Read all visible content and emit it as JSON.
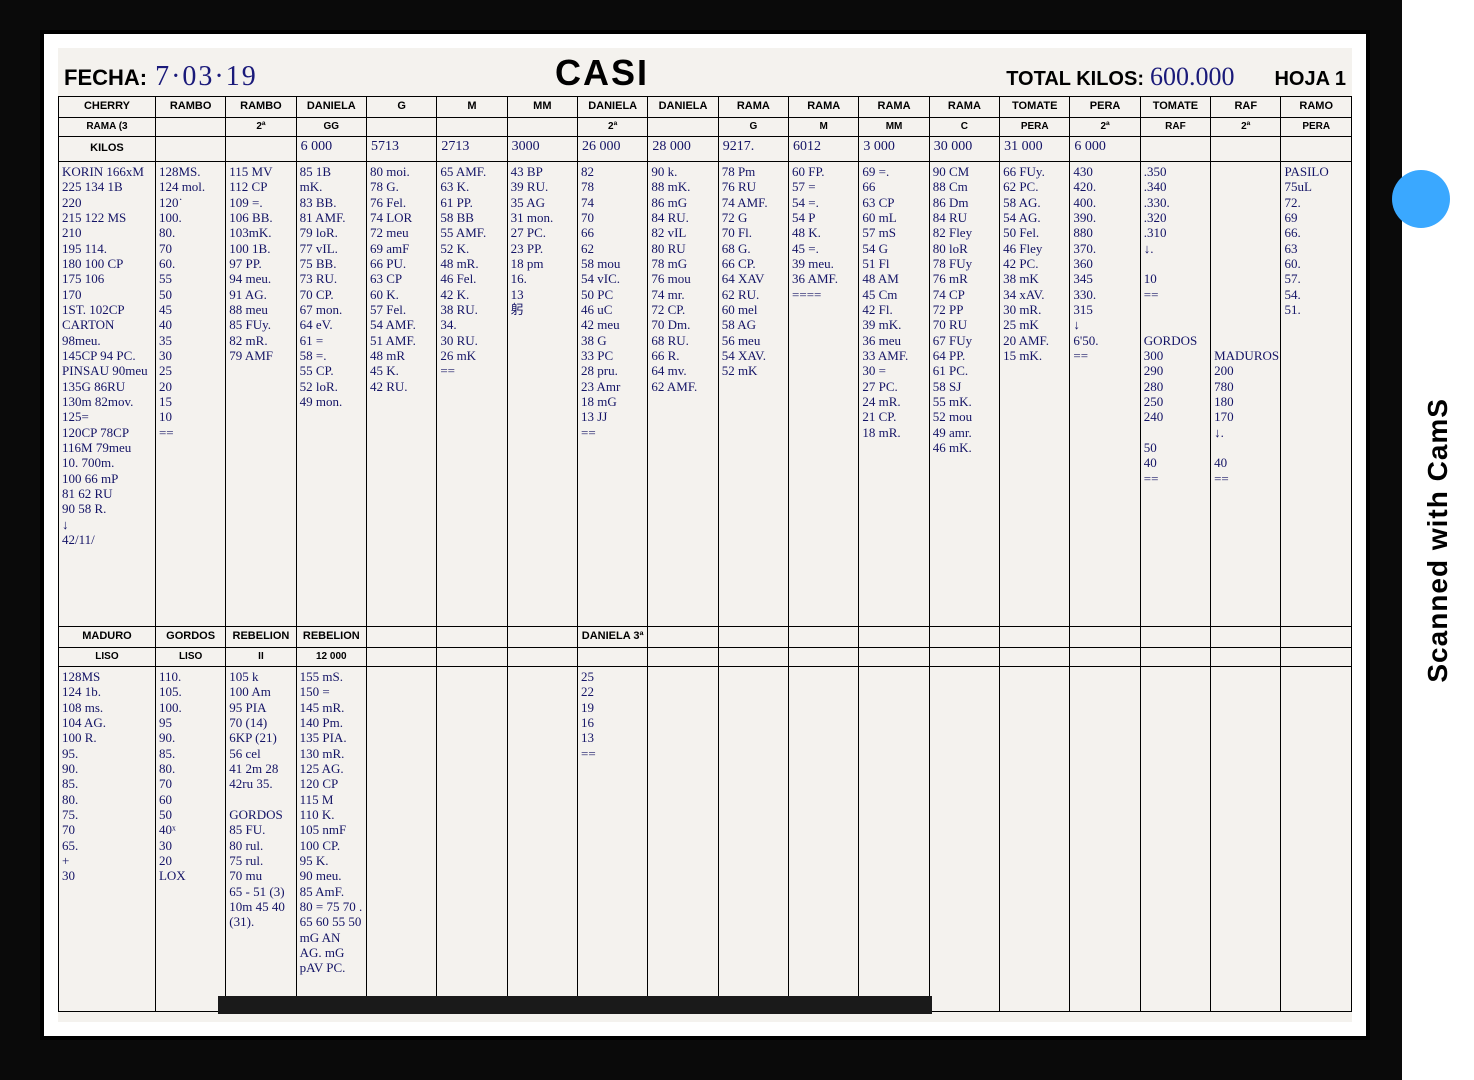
{
  "header": {
    "fecha_label": "FECHA:",
    "fecha_value": "7·03·19",
    "title": "CASI",
    "total_label": "TOTAL KILOS:",
    "total_value": "600.000",
    "hoja": "HOJA 1"
  },
  "colHeaders1": [
    "CHERRY",
    "RAMBO",
    "RAMBO",
    "DANIELA",
    "G",
    "M",
    "MM",
    "DANIELA",
    "DANIELA",
    "RAMA",
    "RAMA",
    "RAMA",
    "RAMA",
    "TOMATE",
    "PERA",
    "TOMATE",
    "RAF",
    "RAMO"
  ],
  "colHeaders2": [
    "RAMA  (3",
    "",
    "2ª",
    "GG",
    "",
    "",
    "",
    "2ª",
    "",
    "G",
    "M",
    "MM",
    "C",
    "PERA",
    "2ª",
    "RAF",
    "2ª",
    "PERA"
  ],
  "kilosRow": [
    "KILOS",
    "",
    "",
    "6 000",
    "5713",
    "2713",
    "3000",
    "26 000",
    "28 000",
    "9217.",
    "6012",
    "3 000",
    "30 000",
    "31 000",
    "6 000",
    "",
    "",
    ""
  ],
  "cols": [
    "KORIN 166xM\n225  134 1B\n220\n215   122 MS\n210\n195   114.\n180   100 CP\n175   106\n170\n1ST.  102CP\nCARTON 98meu.\n145CP 94 PC.\nPINSAU 90meu\n135G  86RU\n130m  82mov.\n125=\n120CP 78CP\n116M  79meu\n10.   700m.\n100   66 mP\n81    62 RU\n90    58 R.\n       ↓\n      42/11/",
    "128MS.\n124 mol.\n120˙\n100.\n80.\n70\n60.\n55\n50\n45\n40\n35\n30\n25\n20\n15\n10\n==",
    "115 MV\n112 CP\n109 =.\n106 BB.\n103mK.\n100 1B.\n97 PP.\n94 meu.\n91 AG.\n88 meu\n85 FUy.\n82 mR.\n79 AMF",
    "85 1B\n  mK.\n83 BB.\n81 AMF.\n79 loR.\n77 vIL.\n75 BB.\n73 RU.\n70 CP.\n67 mon.\n64 eV.\n61 =\n58 =.\n55 CP.\n52 loR.\n49 mon.",
    "80 moi.\n78 G.\n76 Fel.\n74 LOR\n72 meu\n69 amF\n66 PU.\n63 CP\n60 K.\n57 Fel.\n54 AMF.\n51 AMF.\n48 mR\n45 K.\n42 RU.",
    "65 AMF.\n63 K.\n61 PP.\n58 BB\n55 AMF.\n52 K.\n48 mR.\n46 Fel.\n42 K.\n38 RU.\n34.\n30 RU.\n26 mK\n==",
    "43 BP\n39 RU.\n35 AG\n31 mon.\n27 PC.\n23 PP.\n18 pm\n16.\n13\n躬\n",
    "82\n78\n74\n70\n66\n62\n58 mou\n54 vIC.\n50 PC\n46 uC\n42 meu\n38 G\n33 PC\n28 pru.\n23 Amr\n18 mG\n13 JJ\n==",
    "90 k.\n88 mK.\n86 mG\n84 RU.\n82 vIL\n80 RU\n78 mG\n76 mou\n74 mr.\n72 CP.\n70 Dm.\n68 RU.\n66 R.\n64 mv.\n62 AMF.",
    "78 Pm\n76 RU\n74 AMF.\n72 G\n70 Fl.\n68 G.\n66 CP.\n64 XAV\n62 RU.\n60 mel\n58 AG\n56 meu\n54 XAV.\n52 mK",
    "60 FP.\n57 =\n54 =.\n54 P\n48 K.\n45 =.\n39 meu.\n36 AMF.\n====",
    "69 =.\n66\n63 CP\n60 mL\n57 mS\n54 G\n51 Fl\n48 AM\n45 Cm\n42 Fl.\n39 mK.\n36 meu\n33 AMF.\n30 =\n27 PC.\n24 mR.\n21 CP.\n18 mR.",
    "90 CM\n88 Cm\n86 Dm\n84 RU\n82 Fley\n80 loR\n78 FUy\n76 mR\n74 CP\n72 PP\n70 RU\n67 FUy\n64 PP.\n61 PC.\n58 SJ\n55 mK.\n52 mou\n49 amr.\n46 mK.",
    "66 FUy.\n62 PC.\n58 AG.\n54 AG.\n50 Fel.\n46 Fley\n42 PC.\n38 mK\n34 xAV.\n30 mR.\n25 mK\n20 AMF.\n15 mK.",
    "430\n420.\n400.\n390.\n880\n370.\n360\n345\n330.\n315\n↓\n6'50.\n==",
    ".350\n.340\n.330.\n.320\n.310\n ↓.\n\n 10\n ==\n\n\nGORDOS\n300\n290\n280\n250\n240\n\n 50\n 40\n ==",
    "\n\n\n\n\n\n\n\n\n\n\n\nMADUROS\n200\n780\n180\n170\n ↓.\n\n 40\n ==",
    "PASILO\n75uL\n72.\n69\n66.\n63\n60.\n57.\n54.\n51."
  ],
  "midHeaders": [
    "MADURO",
    "GORDOS",
    "REBELION",
    "REBELION",
    "",
    "",
    "",
    "DANIELA 3ª"
  ],
  "midSub": [
    "LISO",
    "LISO",
    "II",
    "12 000",
    "",
    "",
    "",
    ""
  ],
  "lowCols": [
    "128MS\n124 1b.\n108 ms.\n104 AG.\n100 R.\n95.\n90.\n85.\n80.\n75.\n70\n65.\n +\n30",
    "110.\n105.\n100.\n95\n90.\n85.\n80.\n70\n60\n50\n40ˣ\n30\n20\nLOX",
    "105 k\n100 Am\n95 PIA\n70   (14)\n6KP  (21)\n56 cel\n41 2m  28\n42ru  35.\n\nGORDOS\n85 FU.\n80 rul.\n75 rul.\n70 mu\n65 - 51 (3)\n10m 45 40\n    (31).",
    "155 mS.\n150 =\n145 mR.\n140 Pm.\n135 PIA.\n130 mR.\n125 AG.\n120 CP\n115 M\n110 K.\n105 nmF\n100 CP.\n95 K.\n90 meu.\n85 AmF.\n80 = 75 70 . 65 60 55 50\n      mG AN  AG. mG  pAV PC.",
    "",
    "",
    "",
    "25\n22\n19\n16\n13\n=="
  ],
  "style": {
    "ink": "#141466",
    "paper": "#f4f2ee",
    "border": "#000000",
    "badge": "#3aa8ff",
    "hdr_font": "Arial",
    "hw_font": "Comic Sans MS",
    "casi_size": 36,
    "th_size": 11,
    "hw_size": 13
  },
  "sideText": "Scanned with CamS"
}
